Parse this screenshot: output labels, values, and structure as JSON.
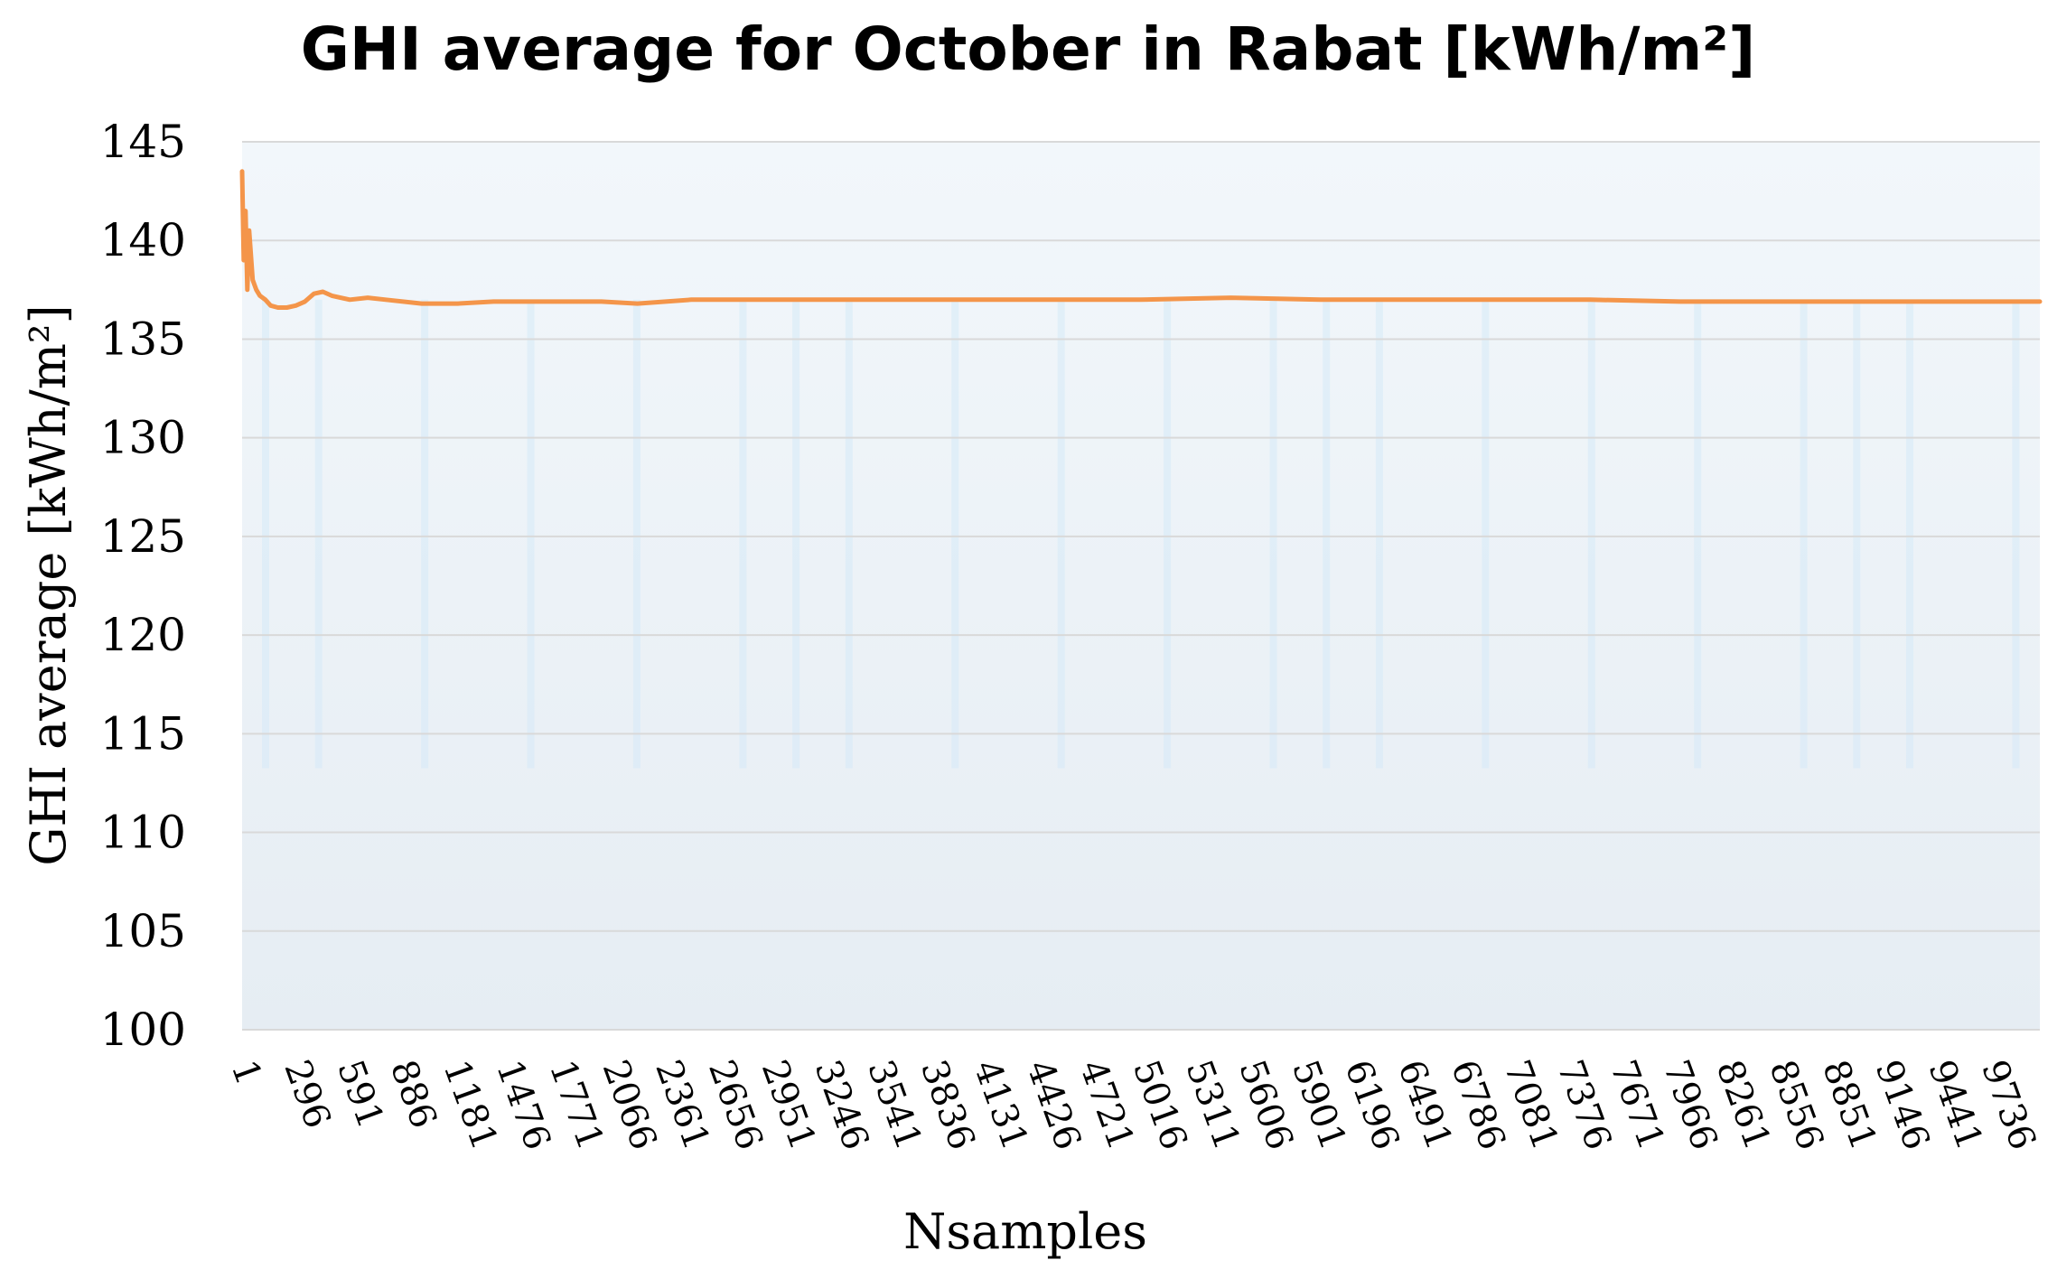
{
  "chart_data": {
    "type": "line",
    "title": "GHI average for October in Rabat [kWh/m²]",
    "xlabel": "Nsamples",
    "ylabel": "GHI average [kWh/m²]",
    "ylim": [
      100,
      145
    ],
    "y_ticks": [
      100,
      105,
      110,
      115,
      120,
      125,
      130,
      135,
      140,
      145
    ],
    "x_range": [
      1,
      10000
    ],
    "x_ticks": [
      1,
      296,
      591,
      886,
      1181,
      1476,
      1771,
      2066,
      2361,
      2656,
      2951,
      3246,
      3541,
      3836,
      4131,
      4426,
      4721,
      5016,
      5311,
      5606,
      5901,
      6196,
      6491,
      6786,
      7081,
      7376,
      7671,
      7966,
      8261,
      8556,
      8851,
      9146,
      9441,
      9736
    ],
    "grid": "horizontal",
    "legend": "none",
    "colors": {
      "line": "#f4954a",
      "plot_fill_top": "#f2f7fb",
      "plot_fill_bottom": "#e6edf3",
      "gridline": "#d9d9d9",
      "stripe": "#d6e9f7"
    },
    "series": [
      {
        "x": [
          1,
          10,
          20,
          30,
          40,
          60,
          80,
          100,
          130,
          160,
          200,
          250,
          300,
          350,
          400,
          450,
          500,
          600,
          700,
          800,
          1000,
          1200,
          1400,
          1600,
          1800,
          2000,
          2200,
          2500,
          3000,
          3500,
          4000,
          4500,
          5000,
          5500,
          6000,
          6500,
          7000,
          7500,
          8000,
          8500,
          9000,
          9500,
          10000
        ],
        "y": [
          143.5,
          139,
          141.5,
          137.5,
          140.5,
          138,
          137.5,
          137.2,
          137,
          136.7,
          136.6,
          136.6,
          136.7,
          136.9,
          137.3,
          137.4,
          137.2,
          137,
          137.1,
          137,
          136.8,
          136.8,
          136.9,
          136.9,
          136.9,
          136.9,
          136.8,
          137,
          137,
          137,
          137,
          137,
          137,
          137.1,
          137,
          137,
          137,
          137,
          136.9,
          136.9,
          136.9,
          136.9,
          136.9
        ]
      }
    ]
  }
}
